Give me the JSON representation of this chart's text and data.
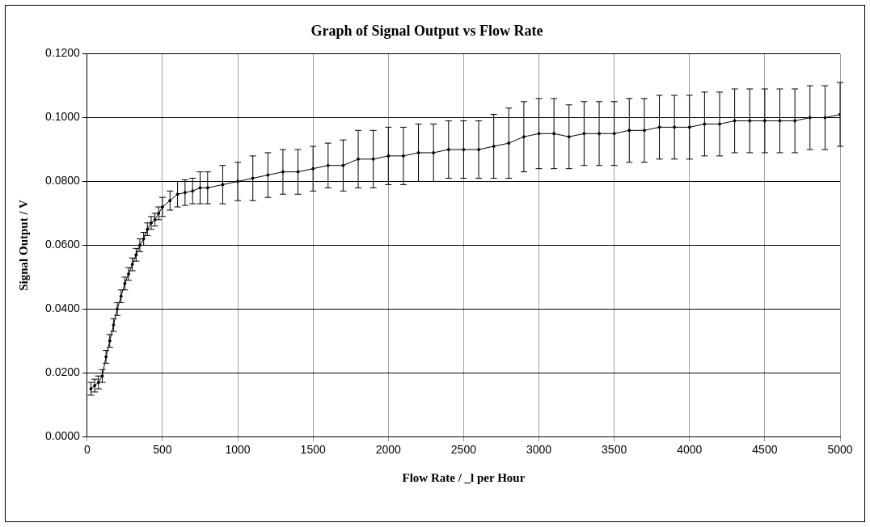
{
  "chart_data": {
    "type": "line",
    "title": "Graph of Signal Output vs Flow Rate",
    "xlabel": "Flow Rate / _l per Hour",
    "ylabel": "Signal Output / V",
    "x": [
      25,
      50,
      75,
      100,
      125,
      150,
      175,
      200,
      225,
      250,
      275,
      300,
      325,
      350,
      375,
      400,
      425,
      450,
      475,
      500,
      550,
      600,
      650,
      700,
      750,
      800,
      900,
      1000,
      1100,
      1200,
      1300,
      1400,
      1500,
      1600,
      1700,
      1800,
      1900,
      2000,
      2100,
      2200,
      2300,
      2400,
      2500,
      2600,
      2700,
      2800,
      2900,
      3000,
      3100,
      3200,
      3300,
      3400,
      3500,
      3600,
      3700,
      3800,
      3900,
      4000,
      4100,
      4200,
      4300,
      4400,
      4500,
      4600,
      4700,
      4800,
      4900,
      5000
    ],
    "series": [
      {
        "color": "#000000",
        "values": [
          0.015,
          0.016,
          0.017,
          0.019,
          0.025,
          0.03,
          0.035,
          0.04,
          0.044,
          0.048,
          0.051,
          0.054,
          0.057,
          0.06,
          0.062,
          0.065,
          0.067,
          0.068,
          0.07,
          0.072,
          0.074,
          0.076,
          0.0765,
          0.077,
          0.078,
          0.078,
          0.079,
          0.08,
          0.081,
          0.082,
          0.083,
          0.083,
          0.084,
          0.085,
          0.085,
          0.087,
          0.087,
          0.088,
          0.088,
          0.089,
          0.089,
          0.09,
          0.09,
          0.09,
          0.091,
          0.092,
          0.094,
          0.095,
          0.095,
          0.094,
          0.095,
          0.095,
          0.095,
          0.096,
          0.096,
          0.097,
          0.097,
          0.097,
          0.098,
          0.098,
          0.099,
          0.099,
          0.099,
          0.099,
          0.099,
          0.1,
          0.1,
          0.101
        ],
        "errors": [
          0.002,
          0.002,
          0.002,
          0.002,
          0.002,
          0.002,
          0.002,
          0.002,
          0.002,
          0.002,
          0.002,
          0.002,
          0.002,
          0.002,
          0.002,
          0.002,
          0.002,
          0.002,
          0.002,
          0.003,
          0.003,
          0.004,
          0.004,
          0.004,
          0.005,
          0.005,
          0.006,
          0.006,
          0.007,
          0.007,
          0.007,
          0.007,
          0.007,
          0.007,
          0.008,
          0.009,
          0.009,
          0.009,
          0.009,
          0.009,
          0.009,
          0.009,
          0.009,
          0.009,
          0.01,
          0.011,
          0.011,
          0.011,
          0.011,
          0.01,
          0.01,
          0.01,
          0.01,
          0.01,
          0.01,
          0.01,
          0.01,
          0.01,
          0.01,
          0.01,
          0.01,
          0.01,
          0.01,
          0.01,
          0.01,
          0.01,
          0.01,
          0.01
        ]
      }
    ],
    "xlim": [
      0,
      5000
    ],
    "xticks": [
      0,
      500,
      1000,
      1500,
      2000,
      2500,
      3000,
      3500,
      4000,
      4500,
      5000
    ],
    "ylim": [
      0,
      0.12
    ],
    "yticks": [
      {
        "value": 0,
        "label": "0.0000"
      },
      {
        "value": 0.02,
        "label": "0.0200"
      },
      {
        "value": 0.04,
        "label": "0.0400"
      },
      {
        "value": 0.06,
        "label": "0.0600"
      },
      {
        "value": 0.08,
        "label": "0.0800"
      },
      {
        "value": 0.1,
        "label": "0.1000"
      },
      {
        "value": 0.12,
        "label": "0.1200"
      }
    ],
    "grid": true,
    "marker": "circle",
    "line_style": "solid"
  }
}
